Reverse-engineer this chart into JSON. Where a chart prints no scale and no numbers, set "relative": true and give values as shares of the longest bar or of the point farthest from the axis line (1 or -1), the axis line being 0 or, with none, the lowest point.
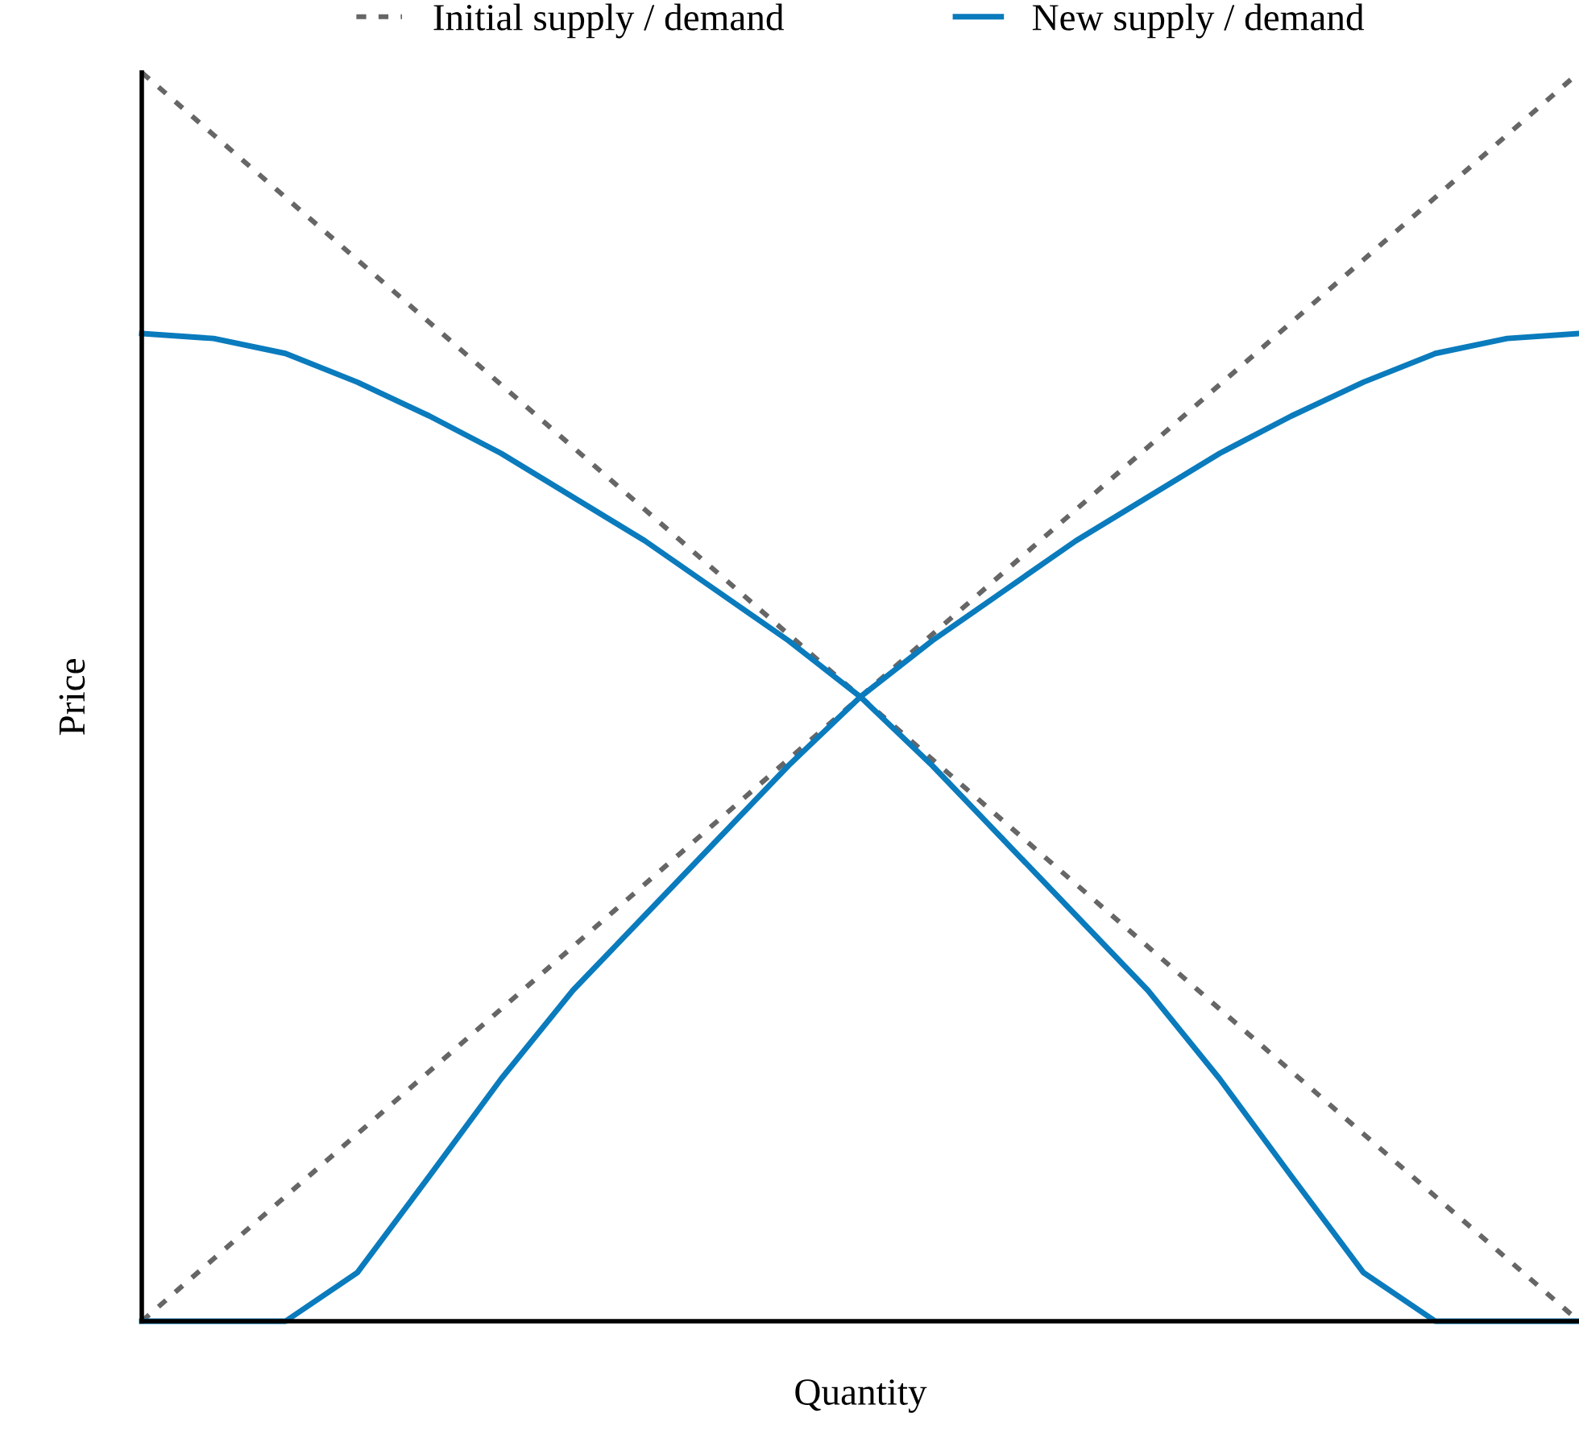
{
  "chart_data": {
    "type": "line",
    "relative": true,
    "xlabel": "Quantity",
    "ylabel": "Price",
    "legend": "top",
    "grid": false,
    "categories": [
      null,
      null,
      null,
      null,
      null,
      null,
      null,
      null,
      null,
      null,
      null,
      null,
      null,
      null,
      null,
      null,
      null,
      null,
      null,
      null,
      null
    ],
    "series": [
      {
        "name": "Initial supply / demand",
        "color": "#666666",
        "line_style": "dotted",
        "values": [
          1,
          0.95,
          0.9,
          0.85,
          0.8,
          0.75,
          0.7,
          0.65,
          0.6,
          0.55,
          0.5,
          0.45,
          0.4,
          0.35,
          0.3,
          0.25,
          0.2,
          0.15,
          0.1,
          0.05,
          0
        ]
      },
      {
        "color": "#666666",
        "line_style": "dotted",
        "values": [
          0,
          0.05,
          0.1,
          0.15,
          0.2,
          0.25,
          0.3,
          0.35,
          0.4,
          0.45,
          0.5,
          0.55,
          0.6,
          0.65,
          0.7,
          0.75,
          0.8,
          0.85,
          0.9,
          0.95,
          1
        ]
      },
      {
        "name": "New supply / demand",
        "color": "#0a7bbd",
        "line_style": "solid",
        "values": [
          0.791,
          0.787,
          0.775,
          0.752,
          0.725,
          0.695,
          0.66,
          0.625,
          0.585,
          0.545,
          0.5,
          0.445,
          0.385,
          0.325,
          0.265,
          0.194,
          0.116,
          0.039,
          0,
          0,
          0
        ]
      },
      {
        "color": "#0a7bbd",
        "line_style": "solid",
        "values": [
          0,
          0,
          0,
          0.039,
          0.116,
          0.194,
          0.265,
          0.325,
          0.385,
          0.445,
          0.5,
          0.545,
          0.585,
          0.625,
          0.66,
          0.695,
          0.725,
          0.752,
          0.775,
          0.787,
          0.791
        ]
      }
    ]
  }
}
